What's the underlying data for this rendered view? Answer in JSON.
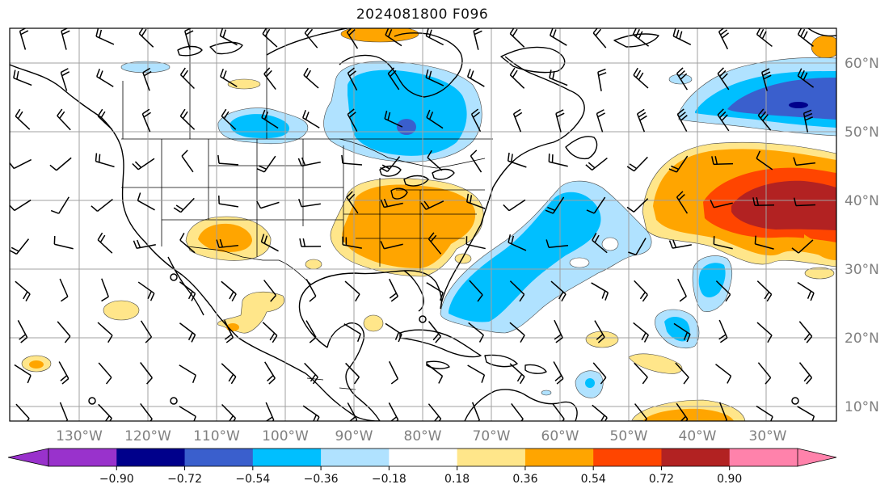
{
  "title": "2024081800 F096",
  "longitude_labels": [
    "130°W",
    "120°W",
    "110°W",
    "100°W",
    "90°W",
    "80°W",
    "70°W",
    "60°W",
    "50°W",
    "40°W",
    "30°W"
  ],
  "latitude_labels": [
    "60°N",
    "50°N",
    "40°N",
    "30°N",
    "20°N",
    "10°N"
  ],
  "colorbar": {
    "ticks": [
      "−0.90",
      "−0.72",
      "−0.54",
      "−0.36",
      "−0.18",
      "0.18",
      "0.36",
      "0.54",
      "0.72",
      "0.90"
    ],
    "colors": [
      "#9932cc",
      "#00008b",
      "#3a5fcd",
      "#00bfff",
      "#b0e2ff",
      "#ffffff",
      "#ffe68a",
      "#ffa500",
      "#ff4500",
      "#b22222",
      "#ff82ab"
    ]
  },
  "colors": {
    "land_lines": "#000000",
    "grid": "#a0a0a0",
    "frame": "#000000"
  }
}
